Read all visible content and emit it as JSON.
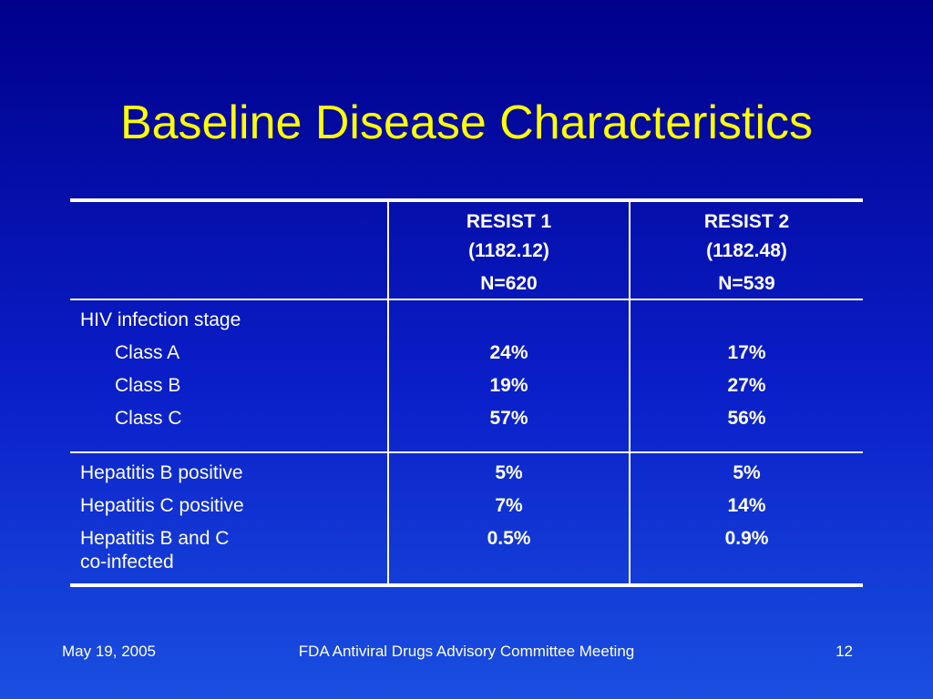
{
  "slide": {
    "title": "Baseline Disease Characteristics"
  },
  "table": {
    "headers": [
      {
        "study": "RESIST 1",
        "protocol": "(1182.12)",
        "n": "N=620"
      },
      {
        "study": "RESIST 2",
        "protocol": "(1182.48)",
        "n": "N=539"
      }
    ],
    "section1": {
      "heading": "HIV infection stage",
      "rows": [
        {
          "label": "Class A",
          "r1": "24%",
          "r2": "17%"
        },
        {
          "label": "Class B",
          "r1": "19%",
          "r2": "27%"
        },
        {
          "label": "Class C",
          "r1": "57%",
          "r2": "56%"
        }
      ]
    },
    "section2": {
      "rows": [
        {
          "label": "Hepatitis B positive",
          "r1": "5%",
          "r2": "5%"
        },
        {
          "label": "Hepatitis C positive",
          "r1": "7%",
          "r2": "14%"
        },
        {
          "label": "Hepatitis B and C",
          "label2": "co-infected",
          "r1": "0.5%",
          "r2": "0.9%"
        }
      ]
    }
  },
  "footer": {
    "date": "May 19, 2005",
    "meeting": "FDA Antiviral Drugs Advisory Committee Meeting",
    "page": "12"
  }
}
